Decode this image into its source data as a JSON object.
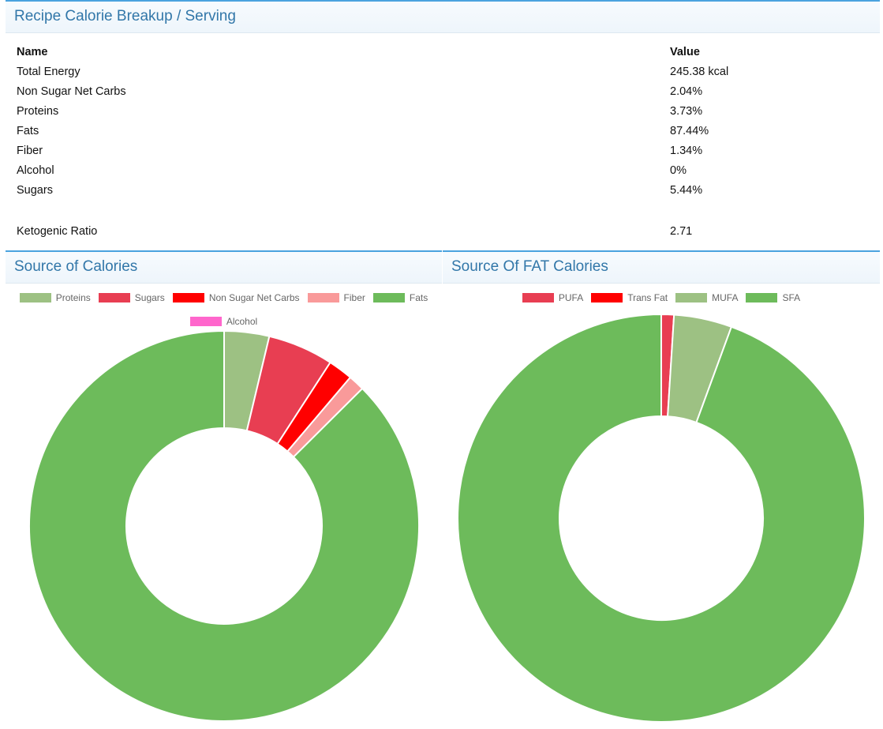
{
  "header": {
    "title": "Recipe Calorie Breakup / Serving"
  },
  "table": {
    "col_name": "Name",
    "col_value": "Value",
    "rows": [
      {
        "name": "Total Energy",
        "value": "245.38 kcal"
      },
      {
        "name": "Non Sugar Net Carbs",
        "value": "2.04%"
      },
      {
        "name": "Proteins",
        "value": "3.73%"
      },
      {
        "name": "Fats",
        "value": "87.44%"
      },
      {
        "name": "Fiber",
        "value": "1.34%"
      },
      {
        "name": "Alcohol",
        "value": "0%"
      },
      {
        "name": "Sugars",
        "value": "5.44%"
      }
    ],
    "keto": {
      "name": "Ketogenic Ratio",
      "value": "2.71"
    }
  },
  "chart_data": [
    {
      "type": "pie",
      "title": "Source of Calories",
      "donut": true,
      "legend_position": "top",
      "categories": [
        "Proteins",
        "Sugars",
        "Non Sugar Net Carbs",
        "Fiber",
        "Fats",
        "Alcohol"
      ],
      "values": [
        3.73,
        5.44,
        2.04,
        1.34,
        87.44,
        0
      ],
      "colors": [
        "#9dc183",
        "#e83e52",
        "#ff0000",
        "#f99a9a",
        "#6dbb5b",
        "#ff66cc"
      ]
    },
    {
      "type": "pie",
      "title": "Source Of FAT Calories",
      "donut": true,
      "legend_position": "top",
      "categories": [
        "PUFA",
        "Trans Fat",
        "MUFA",
        "SFA"
      ],
      "values": [
        1.0,
        0,
        4.6,
        94.4
      ],
      "colors": [
        "#e83e52",
        "#ff0000",
        "#9dc183",
        "#6dbb5b"
      ]
    }
  ]
}
